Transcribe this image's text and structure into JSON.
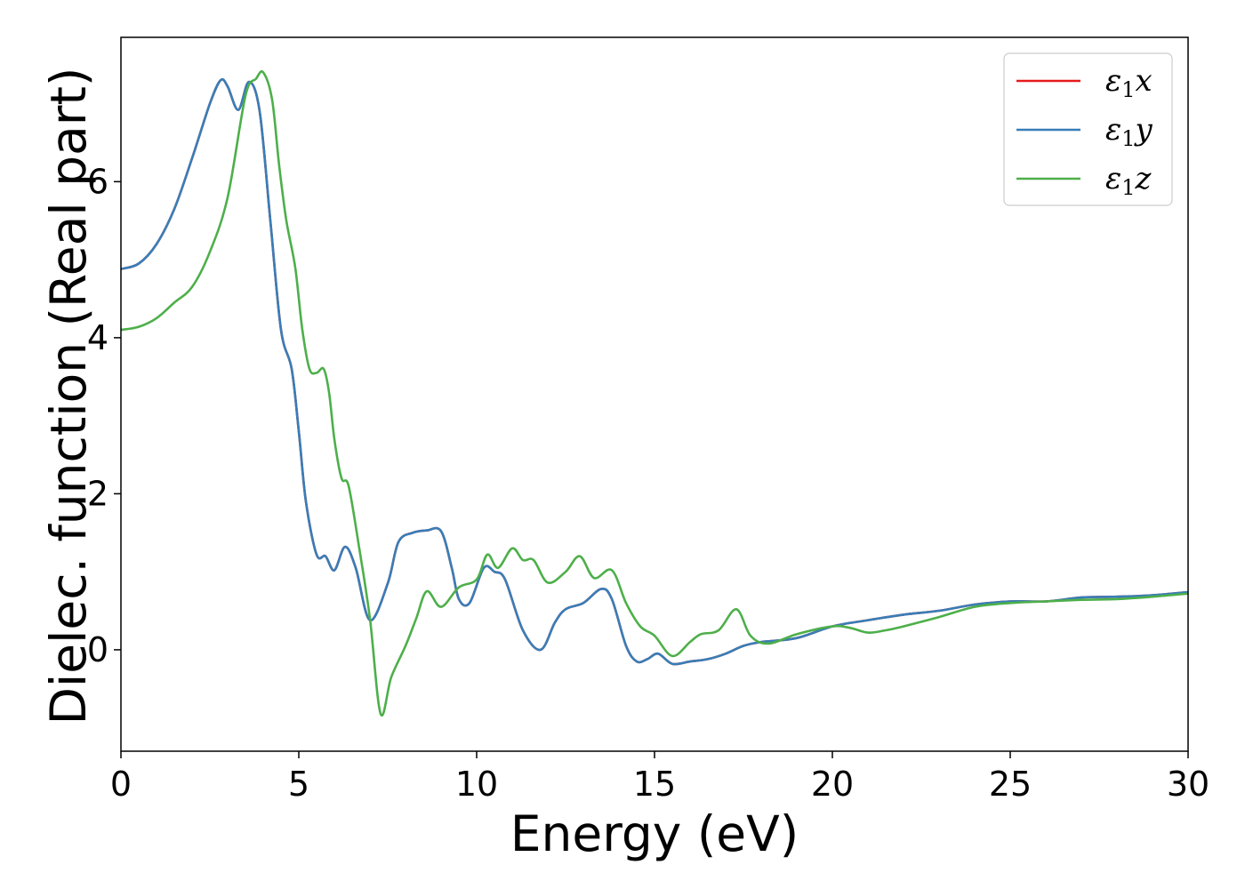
{
  "chart_data": {
    "type": "line",
    "xlabel": "Energy (eV)",
    "ylabel": "Dielec. function (Real part)",
    "xlim": [
      0,
      30
    ],
    "ylim": [
      -1.3,
      7.85
    ],
    "xticks": [
      0,
      5,
      10,
      15,
      20,
      25,
      30
    ],
    "yticks": [
      0,
      2,
      4,
      6
    ],
    "grid": false,
    "legend_position": "top-right",
    "series": [
      {
        "name": "ε₁x",
        "legend_sub": "1",
        "legend_var": "x",
        "color": "#e41a1c",
        "x": [
          0,
          0.5,
          1,
          1.5,
          2,
          2.5,
          2.8,
          3,
          3.3,
          3.6,
          3.9,
          4.2,
          4.5,
          4.8,
          5.0,
          5.2,
          5.5,
          5.75,
          6.0,
          6.3,
          6.6,
          7.0,
          7.5,
          7.8,
          8.2,
          8.6,
          9.0,
          9.3,
          9.5,
          9.8,
          10.2,
          10.5,
          10.8,
          11.3,
          11.8,
          12.2,
          12.5,
          13.0,
          13.5,
          13.8,
          14.2,
          14.5,
          14.8,
          15.1,
          15.5,
          16,
          16.5,
          17,
          17.5,
          18,
          19,
          20,
          21,
          22,
          23,
          24,
          25,
          26,
          27,
          28,
          29,
          30
        ],
        "y": [
          4.88,
          4.95,
          5.2,
          5.65,
          6.3,
          7.0,
          7.3,
          7.22,
          6.92,
          7.28,
          6.9,
          5.5,
          4.1,
          3.6,
          2.8,
          1.9,
          1.22,
          1.2,
          1.02,
          1.32,
          1.05,
          0.38,
          0.85,
          1.38,
          1.5,
          1.53,
          1.52,
          1.05,
          0.65,
          0.6,
          1.05,
          1.0,
          0.9,
          0.25,
          0.0,
          0.35,
          0.52,
          0.6,
          0.78,
          0.65,
          0.05,
          -0.15,
          -0.12,
          -0.05,
          -0.18,
          -0.15,
          -0.12,
          -0.05,
          0.05,
          0.1,
          0.15,
          0.3,
          0.38,
          0.45,
          0.5,
          0.58,
          0.62,
          0.62,
          0.67,
          0.68,
          0.7,
          0.74
        ]
      },
      {
        "name": "ε₁y",
        "legend_sub": "1",
        "legend_var": "y",
        "color": "#377eb8",
        "x": [
          0,
          0.5,
          1,
          1.5,
          2,
          2.5,
          2.8,
          3,
          3.3,
          3.6,
          3.9,
          4.2,
          4.5,
          4.8,
          5.0,
          5.2,
          5.5,
          5.75,
          6.0,
          6.3,
          6.6,
          7.0,
          7.5,
          7.8,
          8.2,
          8.6,
          9.0,
          9.3,
          9.5,
          9.8,
          10.2,
          10.5,
          10.8,
          11.3,
          11.8,
          12.2,
          12.5,
          13.0,
          13.5,
          13.8,
          14.2,
          14.5,
          14.8,
          15.1,
          15.5,
          16,
          16.5,
          17,
          17.5,
          18,
          19,
          20,
          21,
          22,
          23,
          24,
          25,
          26,
          27,
          28,
          29,
          30
        ],
        "y": [
          4.88,
          4.95,
          5.2,
          5.65,
          6.3,
          7.0,
          7.3,
          7.22,
          6.92,
          7.28,
          6.9,
          5.5,
          4.1,
          3.6,
          2.8,
          1.9,
          1.22,
          1.2,
          1.02,
          1.32,
          1.05,
          0.38,
          0.85,
          1.38,
          1.5,
          1.53,
          1.52,
          1.05,
          0.65,
          0.6,
          1.05,
          1.0,
          0.9,
          0.25,
          0.0,
          0.35,
          0.52,
          0.6,
          0.78,
          0.65,
          0.05,
          -0.15,
          -0.12,
          -0.05,
          -0.18,
          -0.15,
          -0.12,
          -0.05,
          0.05,
          0.1,
          0.15,
          0.3,
          0.38,
          0.45,
          0.5,
          0.58,
          0.62,
          0.62,
          0.67,
          0.68,
          0.7,
          0.74
        ]
      },
      {
        "name": "ε₁z",
        "legend_sub": "1",
        "legend_var": "z",
        "color": "#4daf4a",
        "x": [
          0,
          0.5,
          1,
          1.5,
          2,
          2.5,
          3,
          3.5,
          3.8,
          4.0,
          4.25,
          4.45,
          4.65,
          4.9,
          5.1,
          5.3,
          5.5,
          5.7,
          5.85,
          6.0,
          6.2,
          6.4,
          6.7,
          7.0,
          7.3,
          7.6,
          8.0,
          8.3,
          8.6,
          9.0,
          9.5,
          10.0,
          10.3,
          10.6,
          11.0,
          11.3,
          11.6,
          12.0,
          12.5,
          12.9,
          13.3,
          13.8,
          14.2,
          14.6,
          15.0,
          15.5,
          16.0,
          16.3,
          16.8,
          17.3,
          17.7,
          18.2,
          19,
          20,
          20.5,
          21,
          21.5,
          22,
          23,
          24,
          25,
          26,
          27,
          28,
          29,
          30
        ],
        "y": [
          4.1,
          4.14,
          4.25,
          4.45,
          4.65,
          5.1,
          5.8,
          7.1,
          7.32,
          7.4,
          7.05,
          6.2,
          5.5,
          4.9,
          4.1,
          3.6,
          3.55,
          3.6,
          3.3,
          2.7,
          2.2,
          2.1,
          1.3,
          0.4,
          -0.82,
          -0.35,
          0.05,
          0.4,
          0.75,
          0.55,
          0.8,
          0.9,
          1.22,
          1.05,
          1.3,
          1.15,
          1.15,
          0.86,
          1.0,
          1.2,
          0.92,
          1.02,
          0.6,
          0.3,
          0.18,
          -0.08,
          0.1,
          0.2,
          0.25,
          0.52,
          0.18,
          0.08,
          0.2,
          0.3,
          0.28,
          0.22,
          0.25,
          0.3,
          0.42,
          0.55,
          0.6,
          0.62,
          0.64,
          0.65,
          0.68,
          0.72
        ]
      }
    ]
  }
}
